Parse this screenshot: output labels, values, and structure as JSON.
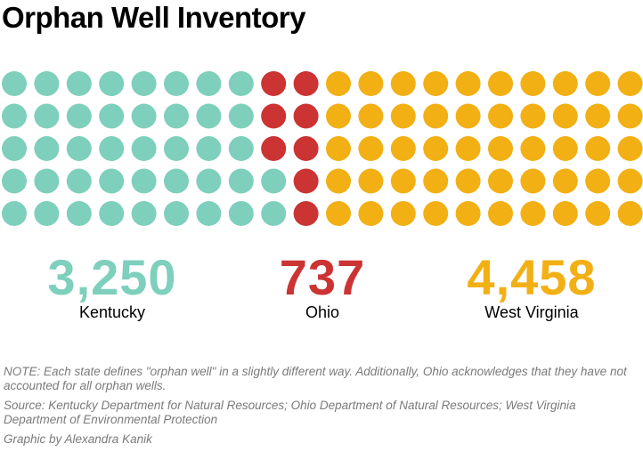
{
  "title": "Orphan Well Inventory",
  "chart_data": {
    "type": "waffle",
    "rows": 5,
    "columns": 20,
    "series": [
      {
        "name": "Kentucky",
        "value": 3250,
        "display": "3,250",
        "dots": 42,
        "color": "#7fcfbd"
      },
      {
        "name": "Ohio",
        "value": 737,
        "display": "737",
        "dots": 8,
        "color": "#cc3333"
      },
      {
        "name": "West Virginia",
        "value": 4458,
        "display": "4,458",
        "dots": 50,
        "color": "#f2b015"
      }
    ]
  },
  "notes": {
    "note": "NOTE: Each state defines \"orphan well\" in a slightly different way. Additionally, Ohio acknowledges that they have not accounted for all orphan wells.",
    "source": "Source: Kentucky Department for Natural Resources; Ohio Department of Natural Resources; West Virginia Department of Environmental Protection",
    "credit": "Graphic by Alexandra Kanik"
  }
}
